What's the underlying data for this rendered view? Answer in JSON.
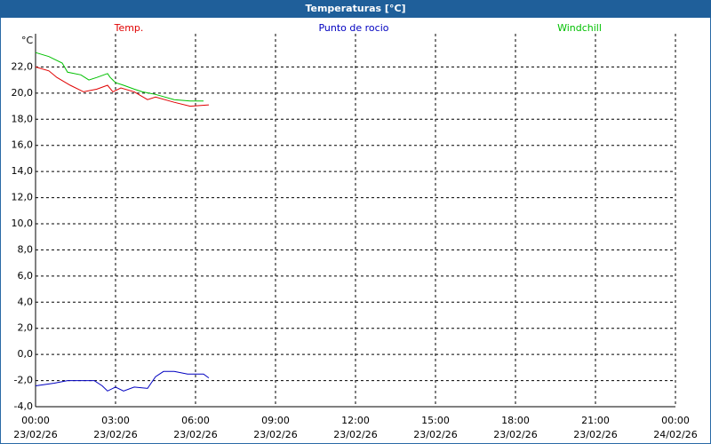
{
  "chart_data": {
    "type": "line",
    "title": "Temperaturas [°C]",
    "y_label": "°C",
    "xlim": [
      0,
      24
    ],
    "ylim": [
      -4,
      24
    ],
    "xticks": [
      {
        "value": 0,
        "label": "00:00"
      },
      {
        "value": 3,
        "label": "03:00"
      },
      {
        "value": 6,
        "label": "06:00"
      },
      {
        "value": 9,
        "label": "09:00"
      },
      {
        "value": 12,
        "label": "12:00"
      },
      {
        "value": 15,
        "label": "15:00"
      },
      {
        "value": 18,
        "label": "18:00"
      },
      {
        "value": 21,
        "label": "21:00"
      },
      {
        "value": 24,
        "label": "00:00"
      }
    ],
    "xtick_dates": [
      "23/02/26",
      "23/02/26",
      "23/02/26",
      "23/02/26",
      "23/02/26",
      "23/02/26",
      "23/02/26",
      "23/02/26",
      "24/02/26"
    ],
    "yticks": [
      {
        "value": -4,
        "label": "-4,0"
      },
      {
        "value": -2,
        "label": "-2,0"
      },
      {
        "value": 0,
        "label": "0,0"
      },
      {
        "value": 2,
        "label": "2,0"
      },
      {
        "value": 4,
        "label": "4,0"
      },
      {
        "value": 6,
        "label": "6,0"
      },
      {
        "value": 8,
        "label": "8,0"
      },
      {
        "value": 10,
        "label": "10,0"
      },
      {
        "value": 12,
        "label": "12,0"
      },
      {
        "value": 14,
        "label": "14,0"
      },
      {
        "value": 16,
        "label": "16,0"
      },
      {
        "value": 18,
        "label": "18,0"
      },
      {
        "value": 20,
        "label": "20,0"
      },
      {
        "value": 22,
        "label": "22,0"
      }
    ],
    "grid": true,
    "series": [
      {
        "name": "Temp.",
        "color": "#e00000",
        "x": [
          0,
          0.5,
          0.8,
          1.3,
          1.8,
          2.3,
          2.7,
          2.9,
          3.2,
          3.7,
          4.2,
          4.5,
          5.2,
          5.8,
          6.5
        ],
        "values": [
          22.0,
          21.7,
          21.2,
          20.6,
          20.1,
          20.3,
          20.6,
          20.1,
          20.4,
          20.1,
          19.5,
          19.7,
          19.3,
          19.0,
          19.1
        ]
      },
      {
        "name": "Punto de rocio",
        "color": "#0000c0",
        "x": [
          0,
          0.7,
          1.2,
          1.7,
          2.2,
          2.5,
          2.7,
          3.0,
          3.3,
          3.7,
          4.2,
          4.5,
          4.8,
          5.2,
          5.7,
          6.3,
          6.5
        ],
        "values": [
          -2.4,
          -2.2,
          -2.0,
          -2.0,
          -2.0,
          -2.4,
          -2.8,
          -2.5,
          -2.8,
          -2.5,
          -2.6,
          -1.7,
          -1.3,
          -1.3,
          -1.5,
          -1.5,
          -1.8
        ]
      },
      {
        "name": "Windchill",
        "color": "#00c000",
        "x": [
          0,
          0.5,
          1.0,
          1.2,
          1.7,
          2.0,
          2.3,
          2.7,
          2.8,
          3.0,
          3.3,
          3.7,
          4.0,
          4.5,
          5.2,
          5.8,
          6.3
        ],
        "values": [
          23.1,
          22.8,
          22.3,
          21.6,
          21.4,
          21.0,
          21.2,
          21.5,
          21.2,
          20.8,
          20.6,
          20.3,
          20.1,
          19.9,
          19.5,
          19.4,
          19.4
        ]
      }
    ]
  }
}
